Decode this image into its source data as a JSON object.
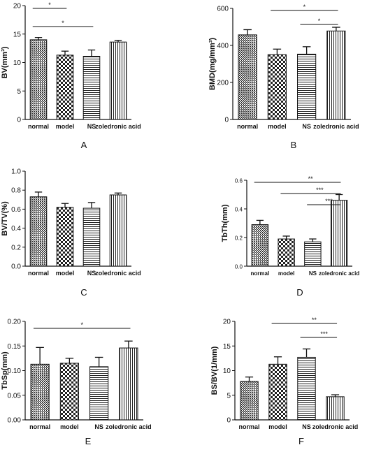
{
  "chart_data": [
    {
      "type": "bar",
      "panel": "A",
      "ylabel": "BV(mm³)",
      "categories": [
        "normal",
        "model",
        "NS",
        "zoledronic acid"
      ],
      "values": [
        14.0,
        11.3,
        11.1,
        13.6
      ],
      "errors": [
        0.4,
        0.7,
        1.1,
        0.3
      ],
      "ylim": [
        0,
        20
      ],
      "yticks": [
        0,
        5,
        10,
        15,
        20
      ],
      "ytick_labels": [
        "0",
        "5",
        "10",
        "15",
        "20"
      ],
      "significance": [
        {
          "from": 0,
          "to": 1,
          "label": "*"
        },
        {
          "from": 0,
          "to": 2,
          "label": "*"
        }
      ]
    },
    {
      "type": "bar",
      "panel": "B",
      "ylabel": "BMD(mg/mm³)",
      "categories": [
        "normal",
        "model",
        "NS",
        "zoledronic acid"
      ],
      "values": [
        457,
        350,
        353,
        478
      ],
      "errors": [
        28,
        30,
        40,
        20
      ],
      "ylim": [
        0,
        600
      ],
      "yticks": [
        0,
        200,
        400,
        600
      ],
      "ytick_labels": [
        "0",
        "200",
        "400",
        "600"
      ],
      "significance": [
        {
          "from": 1,
          "to": 3,
          "label": "*"
        },
        {
          "from": 2,
          "to": 3,
          "label": "*"
        }
      ]
    },
    {
      "type": "bar",
      "panel": "C",
      "ylabel": "BV/TV(%)",
      "categories": [
        "normal",
        "model",
        "NS",
        "zoledronic acid"
      ],
      "values": [
        0.73,
        0.62,
        0.61,
        0.75
      ],
      "errors": [
        0.05,
        0.04,
        0.06,
        0.02
      ],
      "ylim": [
        0,
        1.0
      ],
      "yticks": [
        0,
        0.2,
        0.4,
        0.6,
        0.8,
        1.0
      ],
      "ytick_labels": [
        "0.0",
        "0.2",
        "0.4",
        "0.6",
        "0.8",
        "1.0"
      ],
      "significance": []
    },
    {
      "type": "bar",
      "panel": "D",
      "ylabel": "TbTh(mm)",
      "categories": [
        "normal",
        "model",
        "NS",
        "zoledronic acid"
      ],
      "values": [
        0.29,
        0.19,
        0.17,
        0.46
      ],
      "errors": [
        0.03,
        0.02,
        0.02,
        0.04
      ],
      "ylim": [
        0,
        0.6
      ],
      "yticks": [
        0,
        0.2,
        0.4,
        0.6
      ],
      "ytick_labels": [
        "0.0",
        "0.2",
        "0.4",
        "0.6"
      ],
      "significance": [
        {
          "from": 0,
          "to": 3,
          "label": "**"
        },
        {
          "from": 1,
          "to": 3,
          "label": "***"
        },
        {
          "from": 2,
          "to": 3,
          "label": "***"
        }
      ]
    },
    {
      "type": "bar",
      "panel": "E",
      "ylabel": "TbSp(mm)",
      "categories": [
        "normal",
        "model",
        "NS",
        "zoledronic acid"
      ],
      "values": [
        0.113,
        0.115,
        0.108,
        0.146
      ],
      "errors": [
        0.034,
        0.01,
        0.019,
        0.014
      ],
      "ylim": [
        0,
        0.2
      ],
      "yticks": [
        0,
        0.05,
        0.1,
        0.15,
        0.2
      ],
      "ytick_labels": [
        "0.00",
        "0.05",
        "0.10",
        "0.15",
        "0.20"
      ],
      "significance": [
        {
          "from": 0,
          "to": 3,
          "label": "*"
        }
      ]
    },
    {
      "type": "bar",
      "panel": "F",
      "ylabel": "BS/BV(1/mm)",
      "categories": [
        "normal",
        "model",
        "NS",
        "zoledronic acid"
      ],
      "values": [
        7.8,
        11.3,
        12.7,
        4.7
      ],
      "errors": [
        0.9,
        1.5,
        1.7,
        0.4
      ],
      "ylim": [
        0,
        20
      ],
      "yticks": [
        0,
        5,
        10,
        15,
        20
      ],
      "ytick_labels": [
        "0",
        "5",
        "10",
        "15",
        "20"
      ],
      "significance": [
        {
          "from": 1,
          "to": 3,
          "label": "**"
        },
        {
          "from": 2,
          "to": 3,
          "label": "***"
        }
      ]
    }
  ]
}
